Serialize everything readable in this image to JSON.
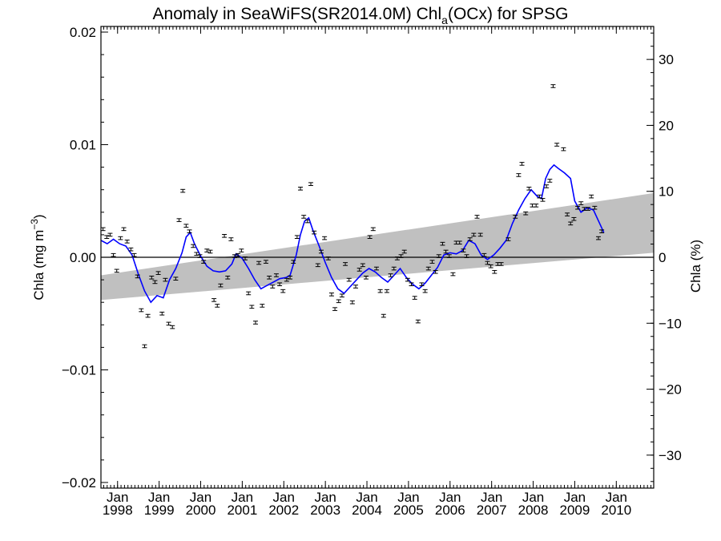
{
  "chart_data": {
    "type": "scatter",
    "title": {
      "prefix": "Anomaly in SeaWiFS(SR2014.0M) Chl",
      "subscript": "a",
      "suffix": "(OCx) for SPSG"
    },
    "ylabel": {
      "text": "Chla (mg m",
      "sup": "−3",
      "close": ")"
    },
    "y2label": "Chla (%)",
    "xlim": [
      1997.6,
      2010.9
    ],
    "ylim": [
      -0.0205,
      0.0205
    ],
    "y2lim": [
      -35,
      35
    ],
    "yticks": [
      {
        "value": 0.02,
        "label": "0.02"
      },
      {
        "value": 0.01,
        "label": "0.01"
      },
      {
        "value": 0.0,
        "label": "0.00"
      },
      {
        "value": -0.01,
        "label": "−0.01"
      },
      {
        "value": -0.02,
        "label": "−0.02"
      }
    ],
    "y2ticks": [
      {
        "value": 30,
        "label": "30"
      },
      {
        "value": 20,
        "label": "20"
      },
      {
        "value": 10,
        "label": "10"
      },
      {
        "value": 0,
        "label": "0"
      },
      {
        "value": -10,
        "label": "−10"
      },
      {
        "value": -20,
        "label": "−20"
      },
      {
        "value": -30,
        "label": "−30"
      }
    ],
    "xticks": [
      {
        "value": 1998,
        "month": "Jan",
        "year": "1998"
      },
      {
        "value": 1999,
        "month": "Jan",
        "year": "1999"
      },
      {
        "value": 2000,
        "month": "Jan",
        "year": "2000"
      },
      {
        "value": 2001,
        "month": "Jan",
        "year": "2001"
      },
      {
        "value": 2002,
        "month": "Jan",
        "year": "2002"
      },
      {
        "value": 2003,
        "month": "Jan",
        "year": "2003"
      },
      {
        "value": 2004,
        "month": "Jan",
        "year": "2004"
      },
      {
        "value": 2005,
        "month": "Jan",
        "year": "2005"
      },
      {
        "value": 2006,
        "month": "Jan",
        "year": "2006"
      },
      {
        "value": 2007,
        "month": "Jan",
        "year": "2007"
      },
      {
        "value": 2008,
        "month": "Jan",
        "year": "2008"
      },
      {
        "value": 2009,
        "month": "Jan",
        "year": "2009"
      },
      {
        "value": 2010,
        "month": "Jan",
        "year": "2010"
      }
    ],
    "zero_line": true,
    "trend_band": {
      "x": [
        1997.6,
        2010.9
      ],
      "upper": [
        -0.0016,
        0.0057
      ],
      "lower": [
        -0.0038,
        0.0004
      ],
      "color": "#c0c0c0"
    },
    "colors": {
      "smooth": "#0000ff",
      "points": "#000000",
      "band": "#c0c0c0"
    },
    "points": [
      [
        1997.65,
        0.0025
      ],
      [
        1997.74,
        0.0018
      ],
      [
        1997.82,
        0.002
      ],
      [
        1997.9,
        0.0002
      ],
      [
        1997.98,
        -0.0012
      ],
      [
        1998.07,
        0.0017
      ],
      [
        1998.15,
        0.0025
      ],
      [
        1998.23,
        0.0014
      ],
      [
        1998.32,
        0.0007
      ],
      [
        1998.4,
        0.0002
      ],
      [
        1998.48,
        -0.0017
      ],
      [
        1998.57,
        -0.0047
      ],
      [
        1998.65,
        -0.0079
      ],
      [
        1998.73,
        -0.0052
      ],
      [
        1998.82,
        -0.0018
      ],
      [
        1998.9,
        -0.0022
      ],
      [
        1998.98,
        -0.0014
      ],
      [
        1999.07,
        -0.005
      ],
      [
        1999.15,
        -0.002
      ],
      [
        1999.23,
        -0.0059
      ],
      [
        1999.32,
        -0.0062
      ],
      [
        1999.4,
        -0.0019
      ],
      [
        1999.48,
        0.0033
      ],
      [
        1999.57,
        0.0059
      ],
      [
        1999.65,
        0.0028
      ],
      [
        1999.73,
        0.0023
      ],
      [
        1999.82,
        0.001
      ],
      [
        1999.9,
        0.0003
      ],
      [
        1999.98,
        0.0001
      ],
      [
        2000.07,
        -0.0004
      ],
      [
        2000.15,
        0.0006
      ],
      [
        2000.23,
        0.0005
      ],
      [
        2000.32,
        -0.0038
      ],
      [
        2000.4,
        -0.0043
      ],
      [
        2000.48,
        -0.0025
      ],
      [
        2000.57,
        0.0019
      ],
      [
        2000.65,
        -0.0018
      ],
      [
        2000.73,
        0.0016
      ],
      [
        2000.82,
        0.0001
      ],
      [
        2000.9,
        0.0002
      ],
      [
        2000.98,
        0.0006
      ],
      [
        2001.07,
        -0.0001
      ],
      [
        2001.15,
        -0.0032
      ],
      [
        2001.23,
        -0.0044
      ],
      [
        2001.32,
        -0.0058
      ],
      [
        2001.4,
        -0.0005
      ],
      [
        2001.48,
        -0.0043
      ],
      [
        2001.57,
        -0.0004
      ],
      [
        2001.65,
        -0.0018
      ],
      [
        2001.73,
        -0.0026
      ],
      [
        2001.82,
        -0.0016
      ],
      [
        2001.9,
        -0.0024
      ],
      [
        2001.98,
        -0.003
      ],
      [
        2002.07,
        -0.002
      ],
      [
        2002.15,
        -0.0018
      ],
      [
        2002.23,
        -0.0004
      ],
      [
        2002.32,
        0.0018
      ],
      [
        2002.4,
        0.0061
      ],
      [
        2002.48,
        0.0036
      ],
      [
        2002.57,
        0.0032
      ],
      [
        2002.65,
        0.0065
      ],
      [
        2002.73,
        0.0022
      ],
      [
        2002.82,
        -0.0007
      ],
      [
        2002.9,
        0.0005
      ],
      [
        2002.98,
        0.0017
      ],
      [
        2003.07,
        -0.0001
      ],
      [
        2003.15,
        -0.0033
      ],
      [
        2003.23,
        -0.0046
      ],
      [
        2003.32,
        -0.0039
      ],
      [
        2003.4,
        -0.0034
      ],
      [
        2003.48,
        -0.0006
      ],
      [
        2003.57,
        -0.002
      ],
      [
        2003.65,
        -0.004
      ],
      [
        2003.73,
        -0.0026
      ],
      [
        2003.82,
        -0.0011
      ],
      [
        2003.9,
        -0.0007
      ],
      [
        2003.98,
        -0.0018
      ],
      [
        2004.07,
        0.0018
      ],
      [
        2004.15,
        0.0025
      ],
      [
        2004.23,
        -0.001
      ],
      [
        2004.32,
        -0.003
      ],
      [
        2004.4,
        -0.0052
      ],
      [
        2004.48,
        -0.003
      ],
      [
        2004.57,
        -0.0016
      ],
      [
        2004.65,
        -0.001
      ],
      [
        2004.73,
        -0.0001
      ],
      [
        2004.82,
        0.0001
      ],
      [
        2004.9,
        0.0005
      ],
      [
        2004.98,
        -0.002
      ],
      [
        2005.07,
        -0.0024
      ],
      [
        2005.15,
        -0.0036
      ],
      [
        2005.23,
        -0.0057
      ],
      [
        2005.32,
        -0.0024
      ],
      [
        2005.4,
        -0.003
      ],
      [
        2005.48,
        -0.001
      ],
      [
        2005.57,
        -0.0004
      ],
      [
        2005.65,
        -0.0013
      ],
      [
        2005.73,
        0.0001
      ],
      [
        2005.82,
        0.0012
      ],
      [
        2005.9,
        0.0005
      ],
      [
        2005.98,
        0.0001
      ],
      [
        2006.07,
        -0.0015
      ],
      [
        2006.15,
        0.0013
      ],
      [
        2006.23,
        0.0013
      ],
      [
        2006.32,
        0.0006
      ],
      [
        2006.4,
        0.0001
      ],
      [
        2006.48,
        0.0016
      ],
      [
        2006.57,
        0.002
      ],
      [
        2006.65,
        0.0036
      ],
      [
        2006.73,
        0.002
      ],
      [
        2006.82,
        0.0002
      ],
      [
        2006.9,
        -0.0005
      ],
      [
        2006.98,
        -0.0008
      ],
      [
        2007.07,
        -0.0013
      ],
      [
        2007.15,
        -0.0006
      ],
      [
        2007.23,
        -0.0006
      ],
      [
        2007.4,
        0.0016
      ],
      [
        2007.57,
        0.0036
      ],
      [
        2007.65,
        0.0073
      ],
      [
        2007.73,
        0.0083
      ],
      [
        2007.82,
        0.0039
      ],
      [
        2007.9,
        0.0061
      ],
      [
        2007.98,
        0.0046
      ],
      [
        2008.07,
        0.0046
      ],
      [
        2008.15,
        0.0054
      ],
      [
        2008.23,
        0.0051
      ],
      [
        2008.32,
        0.0063
      ],
      [
        2008.4,
        0.0068
      ],
      [
        2008.48,
        0.0152
      ],
      [
        2008.57,
        0.01
      ],
      [
        2008.73,
        0.0096
      ],
      [
        2008.82,
        0.0038
      ],
      [
        2008.9,
        0.003
      ],
      [
        2008.98,
        0.0034
      ],
      [
        2009.07,
        0.0044
      ],
      [
        2009.15,
        0.0048
      ],
      [
        2009.23,
        0.0043
      ],
      [
        2009.32,
        0.0043
      ],
      [
        2009.4,
        0.0054
      ],
      [
        2009.48,
        0.0044
      ],
      [
        2009.57,
        0.0017
      ],
      [
        2009.65,
        0.0023
      ]
    ],
    "smooth": [
      [
        1997.6,
        0.0015
      ],
      [
        1997.75,
        0.0012
      ],
      [
        1997.9,
        0.0016
      ],
      [
        1998.05,
        0.0012
      ],
      [
        1998.2,
        0.001
      ],
      [
        1998.35,
        0.0002
      ],
      [
        1998.5,
        -0.0015
      ],
      [
        1998.65,
        -0.003
      ],
      [
        1998.8,
        -0.004
      ],
      [
        1998.95,
        -0.0034
      ],
      [
        1999.1,
        -0.0036
      ],
      [
        1999.25,
        -0.002
      ],
      [
        1999.4,
        -0.001
      ],
      [
        1999.55,
        0.0004
      ],
      [
        1999.65,
        0.0018
      ],
      [
        1999.75,
        0.0022
      ],
      [
        1999.85,
        0.0012
      ],
      [
        2000.0,
        0.0001
      ],
      [
        2000.15,
        -0.0008
      ],
      [
        2000.3,
        -0.0012
      ],
      [
        2000.45,
        -0.0013
      ],
      [
        2000.6,
        -0.0012
      ],
      [
        2000.75,
        -0.0006
      ],
      [
        2000.85,
        0.0003
      ],
      [
        2001.0,
        -0.0001
      ],
      [
        2001.15,
        -0.001
      ],
      [
        2001.3,
        -0.002
      ],
      [
        2001.45,
        -0.0028
      ],
      [
        2001.6,
        -0.0025
      ],
      [
        2001.75,
        -0.0022
      ],
      [
        2001.9,
        -0.0019
      ],
      [
        2002.05,
        -0.0018
      ],
      [
        2002.15,
        -0.0016
      ],
      [
        2002.3,
        0.0002
      ],
      [
        2002.4,
        0.002
      ],
      [
        2002.5,
        0.0032
      ],
      [
        2002.6,
        0.0035
      ],
      [
        2002.7,
        0.0024
      ],
      [
        2002.85,
        0.001
      ],
      [
        2003.0,
        -0.0005
      ],
      [
        2003.15,
        -0.0018
      ],
      [
        2003.3,
        -0.0028
      ],
      [
        2003.45,
        -0.0032
      ],
      [
        2003.6,
        -0.0026
      ],
      [
        2003.75,
        -0.002
      ],
      [
        2003.9,
        -0.0014
      ],
      [
        2004.05,
        -0.001
      ],
      [
        2004.2,
        -0.0013
      ],
      [
        2004.35,
        -0.0018
      ],
      [
        2004.5,
        -0.0022
      ],
      [
        2004.65,
        -0.0016
      ],
      [
        2004.8,
        -0.001
      ],
      [
        2004.95,
        -0.0018
      ],
      [
        2005.1,
        -0.0024
      ],
      [
        2005.25,
        -0.0028
      ],
      [
        2005.4,
        -0.0023
      ],
      [
        2005.55,
        -0.0016
      ],
      [
        2005.7,
        -0.0009
      ],
      [
        2005.85,
        0.0002
      ],
      [
        2006.0,
        0.0004
      ],
      [
        2006.15,
        0.0003
      ],
      [
        2006.3,
        0.0006
      ],
      [
        2006.45,
        0.0015
      ],
      [
        2006.6,
        0.0012
      ],
      [
        2006.75,
        0.0002
      ],
      [
        2006.9,
        -0.0002
      ],
      [
        2007.05,
        0.0002
      ],
      [
        2007.2,
        0.0008
      ],
      [
        2007.35,
        0.0015
      ],
      [
        2007.5,
        0.003
      ],
      [
        2007.65,
        0.0042
      ],
      [
        2007.8,
        0.0052
      ],
      [
        2007.95,
        0.006
      ],
      [
        2008.1,
        0.0054
      ],
      [
        2008.2,
        0.0052
      ],
      [
        2008.3,
        0.007
      ],
      [
        2008.4,
        0.0078
      ],
      [
        2008.5,
        0.0082
      ],
      [
        2008.6,
        0.0079
      ],
      [
        2008.75,
        0.0075
      ],
      [
        2008.9,
        0.007
      ],
      [
        2009.0,
        0.005
      ],
      [
        2009.15,
        0.004
      ],
      [
        2009.3,
        0.0044
      ],
      [
        2009.45,
        0.0042
      ],
      [
        2009.6,
        0.003
      ],
      [
        2009.7,
        0.0022
      ]
    ]
  }
}
